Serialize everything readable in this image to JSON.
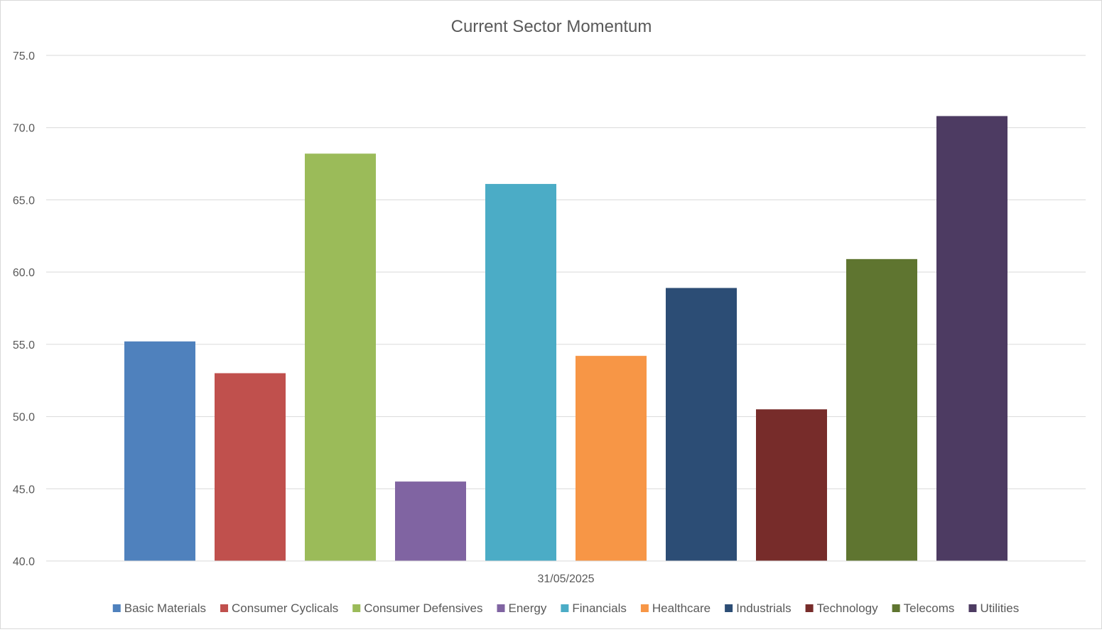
{
  "chart_data": {
    "type": "bar",
    "title": "Current Sector Momentum",
    "xlabel": "",
    "ylabel": "",
    "categories": [
      "31/05/2025"
    ],
    "ylim": [
      40.0,
      75.0
    ],
    "yticks": [
      "40.0",
      "45.0",
      "50.0",
      "55.0",
      "60.0",
      "65.0",
      "70.0",
      "75.0"
    ],
    "grid": true,
    "legend_position": "bottom",
    "series": [
      {
        "name": "Basic Materials",
        "values": [
          55.2
        ],
        "color": "#4f81bd"
      },
      {
        "name": "Consumer Cyclicals",
        "values": [
          53.0
        ],
        "color": "#c0504d"
      },
      {
        "name": "Consumer Defensives",
        "values": [
          68.2
        ],
        "color": "#9bbb59"
      },
      {
        "name": "Energy",
        "values": [
          45.5
        ],
        "color": "#8064a2"
      },
      {
        "name": "Financials",
        "values": [
          66.1
        ],
        "color": "#4bacc6"
      },
      {
        "name": "Healthcare",
        "values": [
          54.2
        ],
        "color": "#f79646"
      },
      {
        "name": "Industrials",
        "values": [
          58.9
        ],
        "color": "#2c4d75"
      },
      {
        "name": "Technology",
        "values": [
          50.5
        ],
        "color": "#772c2a"
      },
      {
        "name": "Telecoms",
        "values": [
          60.9
        ],
        "color": "#5f7530"
      },
      {
        "name": "Utilities",
        "values": [
          70.8
        ],
        "color": "#4d3b62"
      }
    ]
  }
}
